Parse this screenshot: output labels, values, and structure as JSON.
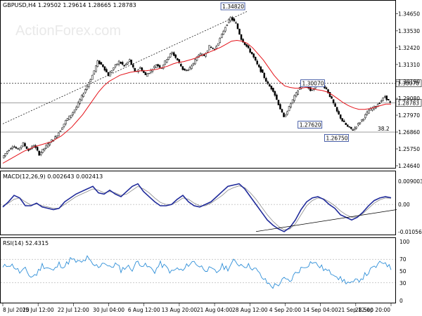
{
  "chart_data": [
    {
      "type": "candlestick",
      "title": "GBPUSD,H4  1.29502 1.29614 1.28665 1.28783",
      "watermark": "ActionForex.com",
      "ylim": [
        1.2464,
        1.3482
      ],
      "y_ticks": [
        1.2464,
        1.2575,
        1.2686,
        1.2797,
        1.2908,
        1.3019,
        1.3131,
        1.3242,
        1.3353,
        1.3465
      ],
      "y_tick_labels": [
        "1.24640",
        "1.25750",
        "1.26860",
        "1.27970",
        "1.29080",
        "1.30190",
        "1.31310",
        "1.32420",
        "1.33530",
        "1.34650"
      ],
      "x_tick_labels": [
        "8 Jul 2020",
        "15 Jul 12:00",
        "22 Jul 12:00",
        "30 Jul 04:00",
        "6 Aug 12:00",
        "13 Aug 20:00",
        "21 Aug 04:00",
        "28 Aug 12:00",
        "4 Sep 20:00",
        "14 Sep 04:00",
        "21 Sep 12:00",
        "28 Sep 20:00"
      ],
      "close_path": [
        1.2515,
        1.256,
        1.2595,
        1.257,
        1.261,
        1.2565,
        1.26,
        1.254,
        1.258,
        1.262,
        1.265,
        1.27,
        1.276,
        1.28,
        1.285,
        1.292,
        1.299,
        1.306,
        1.315,
        1.312,
        1.306,
        1.311,
        1.315,
        1.312,
        1.316,
        1.308,
        1.311,
        1.306,
        1.309,
        1.313,
        1.311,
        1.317,
        1.321,
        1.316,
        1.31,
        1.309,
        1.314,
        1.32,
        1.319,
        1.325,
        1.323,
        1.33,
        1.338,
        1.344,
        1.34,
        1.33,
        1.325,
        1.32,
        1.313,
        1.307,
        1.3,
        1.296,
        1.287,
        1.278,
        1.285,
        1.292,
        1.298,
        1.3,
        1.296,
        1.298,
        1.3007,
        1.297,
        1.29,
        1.282,
        1.276,
        1.272,
        1.27,
        1.274,
        1.278,
        1.283,
        1.285,
        1.288,
        1.292,
        1.2878
      ],
      "ma_path": [
        1.248,
        1.25,
        1.252,
        1.254,
        1.256,
        1.2575,
        1.259,
        1.26,
        1.261,
        1.262,
        1.264,
        1.266,
        1.269,
        1.272,
        1.276,
        1.28,
        1.285,
        1.29,
        1.295,
        1.299,
        1.302,
        1.304,
        1.306,
        1.307,
        1.308,
        1.3085,
        1.309,
        1.309,
        1.3095,
        1.31,
        1.311,
        1.312,
        1.3135,
        1.3145,
        1.315,
        1.316,
        1.317,
        1.3185,
        1.32,
        1.3215,
        1.323,
        1.3245,
        1.3265,
        1.3285,
        1.329,
        1.3285,
        1.327,
        1.324,
        1.32,
        1.316,
        1.311,
        1.306,
        1.302,
        1.299,
        1.298,
        1.2975,
        1.2975,
        1.298,
        1.2975,
        1.2965,
        1.296,
        1.295,
        1.293,
        1.2905,
        1.288,
        1.286,
        1.2845,
        1.2835,
        1.2835,
        1.284,
        1.285,
        1.286,
        1.287,
        1.287
      ],
      "horizontal_levels": [
        {
          "value": 1.3007,
          "label": "1.30070",
          "style": "dashed"
        },
        {
          "value": 1.2879,
          "label": "1.28783",
          "style": "solid"
        },
        {
          "value": 1.2686,
          "label": "38.2",
          "style": "solid"
        }
      ],
      "annotations": [
        {
          "text": "1.34820",
          "value": 1.3482
        },
        {
          "text": "1.30070",
          "value": 1.3007
        },
        {
          "text": "1.27620",
          "value": 1.2762
        },
        {
          "text": "1.26750",
          "value": 1.2675
        }
      ],
      "trendline": {
        "from": [
          0,
          1.274
        ],
        "to": [
          46,
          1.3482
        ],
        "style": "dashed"
      }
    },
    {
      "type": "line",
      "title": "MACD(12,26,9) 0.002643 0.002413",
      "ylim": [
        -0.010566,
        0.009003
      ],
      "y_tick_labels": [
        "0.009003",
        "0.00",
        "-0.010566"
      ],
      "macd_line": [
        -0.001,
        0.001,
        0.0035,
        0.0025,
        -0.0005,
        -0.0005,
        0.0005,
        -0.001,
        -0.0015,
        -0.002,
        -0.0015,
        0.001,
        0.0025,
        0.004,
        0.005,
        0.006,
        0.007,
        0.0045,
        0.004,
        0.0055,
        0.004,
        0.003,
        0.005,
        0.007,
        0.008,
        0.005,
        0.003,
        0.001,
        -0.0005,
        -0.0005,
        0.0,
        0.002,
        0.0035,
        0.001,
        -0.0005,
        -0.001,
        0.0,
        0.001,
        0.003,
        0.005,
        0.007,
        0.0075,
        0.008,
        0.006,
        0.003,
        0.0,
        -0.003,
        -0.006,
        -0.008,
        -0.0095,
        -0.0105,
        -0.009,
        -0.006,
        -0.002,
        0.001,
        0.0025,
        0.003,
        0.002,
        0.0,
        -0.0015,
        -0.004,
        -0.005,
        -0.006,
        -0.005,
        -0.003,
        -0.0005,
        0.0015,
        0.0025,
        0.003,
        0.0026
      ],
      "signal_line": [
        -0.0005,
        0.0005,
        0.002,
        0.0025,
        0.001,
        -0.0002,
        0.0002,
        -0.0005,
        -0.001,
        -0.0015,
        -0.0015,
        0.0,
        0.0015,
        0.003,
        0.004,
        0.005,
        0.006,
        0.0055,
        0.0045,
        0.005,
        0.0045,
        0.0035,
        0.004,
        0.0055,
        0.007,
        0.006,
        0.0045,
        0.0025,
        0.0008,
        0.0,
        0.0,
        0.001,
        0.0025,
        0.002,
        0.0005,
        -0.0005,
        -0.0005,
        0.0005,
        0.002,
        0.0035,
        0.0055,
        0.0065,
        0.0072,
        0.0065,
        0.0045,
        0.002,
        -0.001,
        -0.004,
        -0.0065,
        -0.0085,
        -0.0098,
        -0.0095,
        -0.0075,
        -0.004,
        -0.0005,
        0.0015,
        0.0025,
        0.0022,
        0.001,
        -0.0005,
        -0.0025,
        -0.004,
        -0.005,
        -0.0048,
        -0.0035,
        -0.0015,
        0.0005,
        0.0018,
        0.0025,
        0.0024
      ],
      "trendline": {
        "from": [
          45,
          -0.0105
        ],
        "to": [
          70,
          -0.002
        ]
      }
    },
    {
      "type": "line",
      "title": "RSI(14) 52.4315",
      "ylim": [
        0,
        100
      ],
      "y_tick_labels": [
        "100",
        "70",
        "50",
        "30",
        "0"
      ],
      "rsi": [
        55,
        62,
        58,
        48,
        52,
        40,
        45,
        60,
        56,
        50,
        62,
        58,
        70,
        66,
        64,
        72,
        60,
        58,
        66,
        55,
        62,
        52,
        58,
        54,
        66,
        60,
        56,
        50,
        62,
        56,
        48,
        54,
        50,
        62,
        66,
        58,
        54,
        52,
        48,
        58,
        55,
        66,
        62,
        60,
        58,
        52,
        40,
        30,
        24,
        28,
        36,
        32,
        46,
        54,
        60,
        66,
        60,
        54,
        48,
        46,
        36,
        32,
        28,
        34,
        40,
        48,
        56,
        62,
        66,
        52
      ]
    }
  ]
}
